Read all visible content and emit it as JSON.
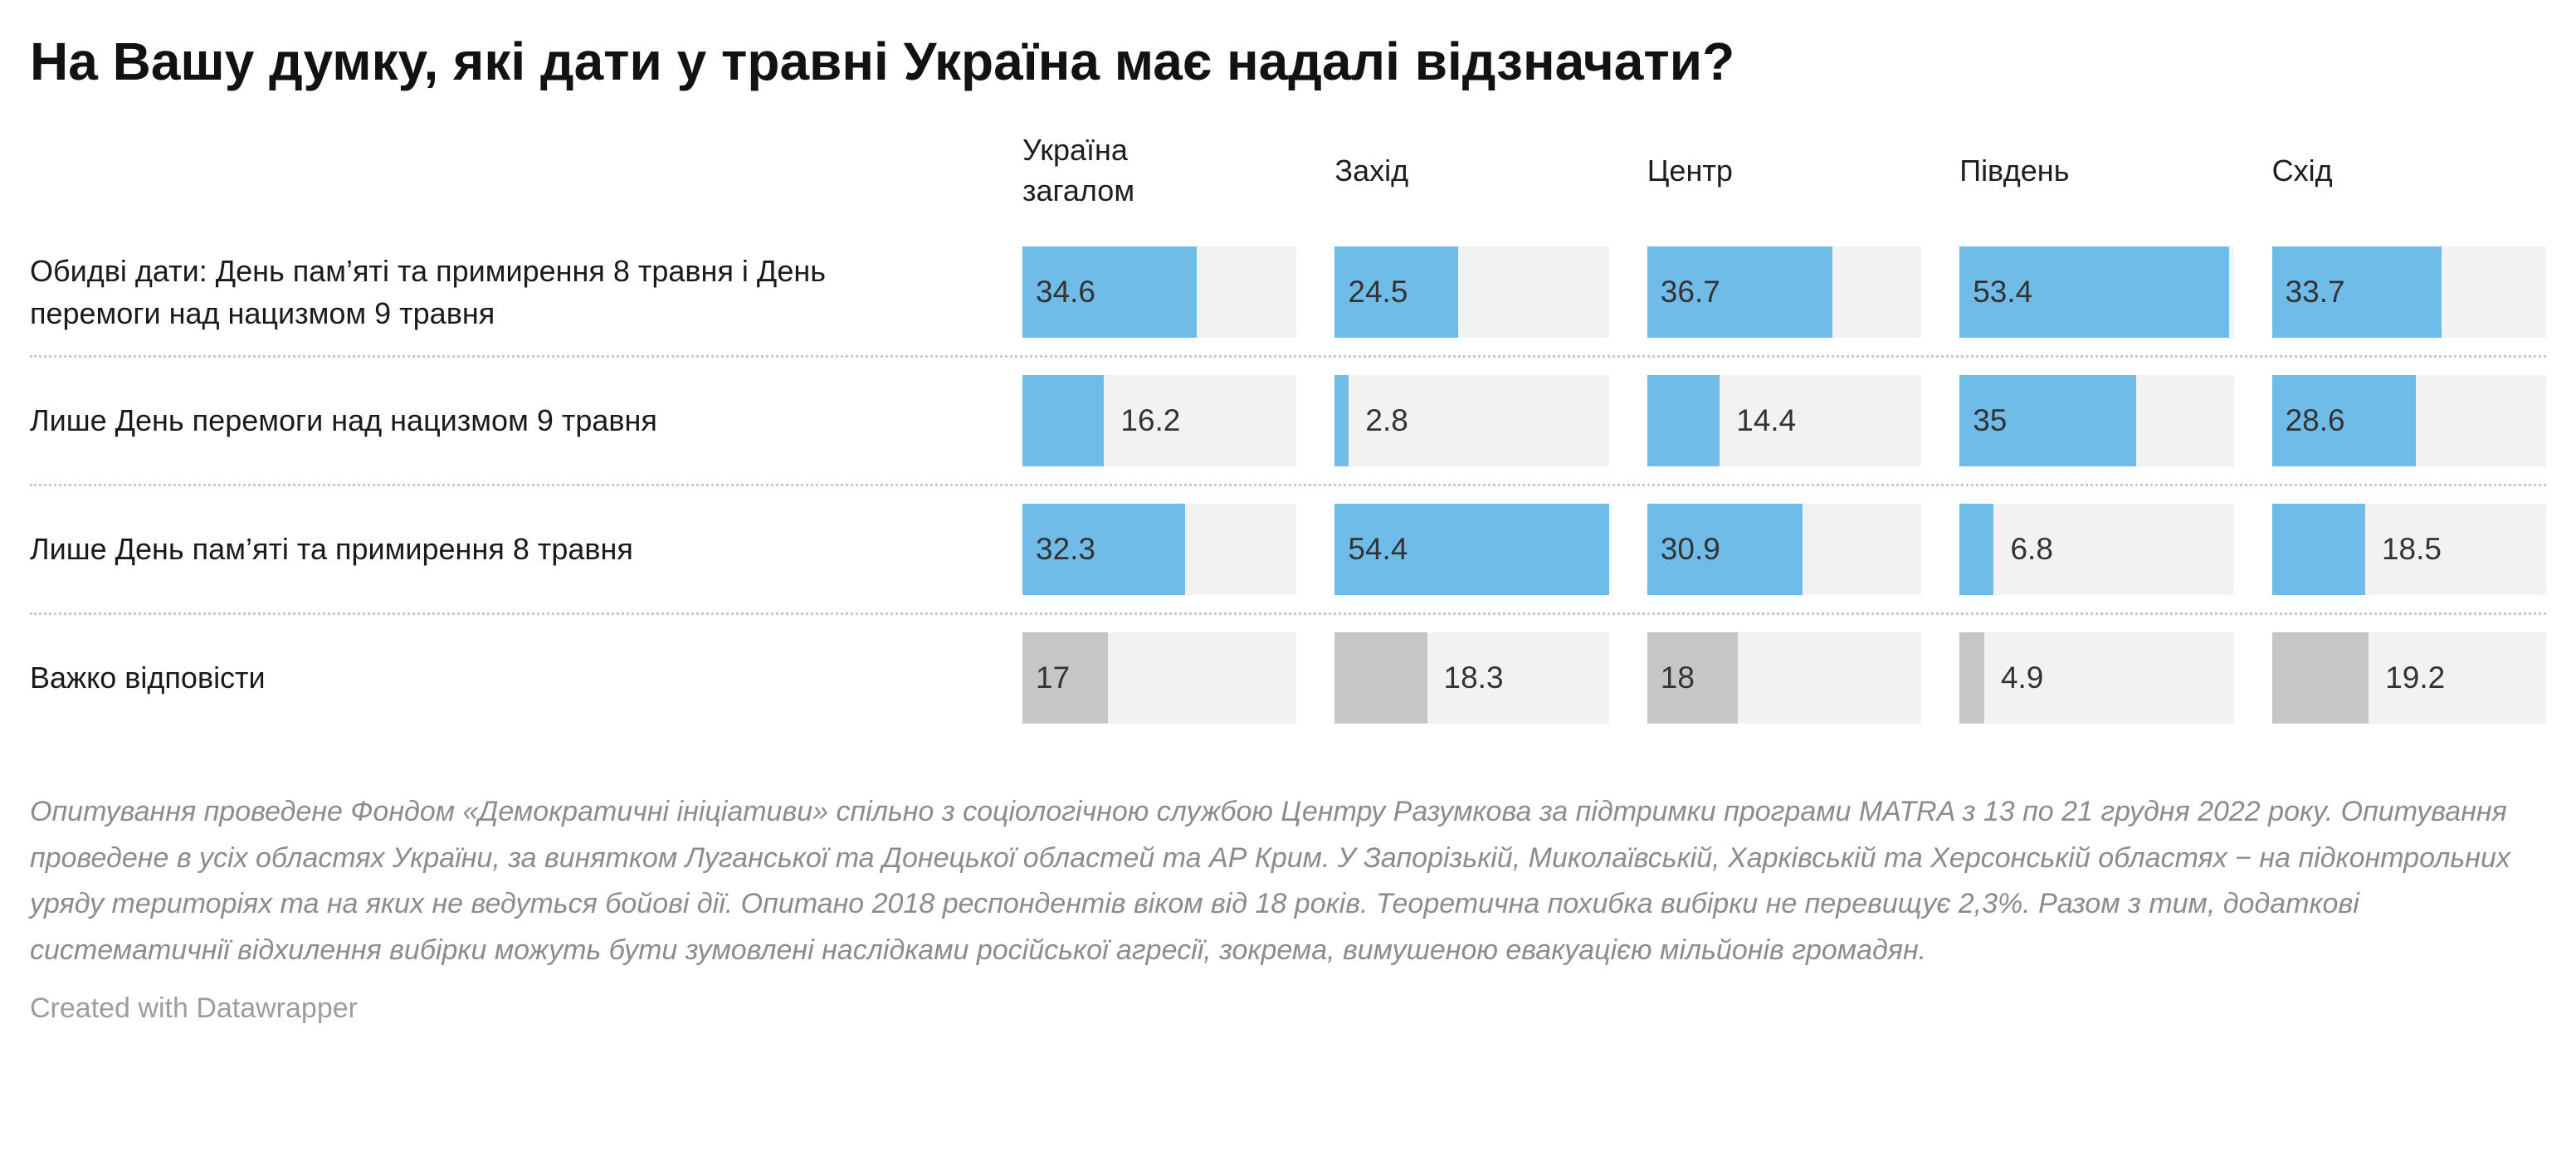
{
  "title": "На Вашу думку, які дати у травні Україна має надалі відзначати?",
  "chart_data": {
    "type": "bar",
    "subtype": "split-bars-small-multiples",
    "unit": "%",
    "xmax": 54.4,
    "grid": false,
    "legend": "none",
    "columns": [
      "Україна загалом",
      "Захід",
      "Центр",
      "Південь",
      "Схід"
    ],
    "rows": [
      {
        "label": "Обидві дати: День пам’яті та примирення 8 травня і День перемоги над нацизмом 9 травня",
        "values": [
          34.6,
          24.5,
          36.7,
          53.4,
          33.7
        ],
        "color": "#70bce8"
      },
      {
        "label": "Лише День перемоги над нацизмом 9 травня",
        "values": [
          16.2,
          2.8,
          14.4,
          35,
          28.6
        ],
        "color": "#70bce8"
      },
      {
        "label": "Лише День пам’яті та примирення 8 травня",
        "values": [
          32.3,
          54.4,
          30.9,
          6.8,
          18.5
        ],
        "color": "#70bce8"
      },
      {
        "label": "Важко відповісти",
        "values": [
          17,
          18.3,
          18,
          4.9,
          19.2
        ],
        "color": "#c6c6c6"
      }
    ],
    "labels_inside": [
      [
        true,
        true,
        true,
        true,
        true
      ],
      [
        false,
        false,
        false,
        true,
        true
      ],
      [
        true,
        true,
        true,
        false,
        false
      ],
      [
        true,
        false,
        true,
        false,
        false
      ]
    ],
    "track_color": "#f2f2f2",
    "accent_color": "#70bce8",
    "neutral_color": "#c6c6c6"
  },
  "notes": "Опитування проведене Фондом «Демократичні ініціативи» спільно з соціологічною службою Центру Разумкова за підтримки програми MATRA з 13 по 21 грудня 2022 року. Опитування проведене в усіх областях України, за винятком Луганської та Донецької областей та АР Крим. У Запорізькій, Миколаївській, Харківській та Херсонській областях − на підконтрольних уряду територіях та на яких не ведуться бойові дії. Опитано 2018 респондентів віком від 18 років. Теоретична похибка вибірки не перевищує 2,3%. Разом з тим, додаткові систематичнії відхилення вибірки можуть бути зумовлені наслідками російської агресії, зокрема, вимушеною евакуацією мільйонів громадян.",
  "attribution": "Created with Datawrapper"
}
